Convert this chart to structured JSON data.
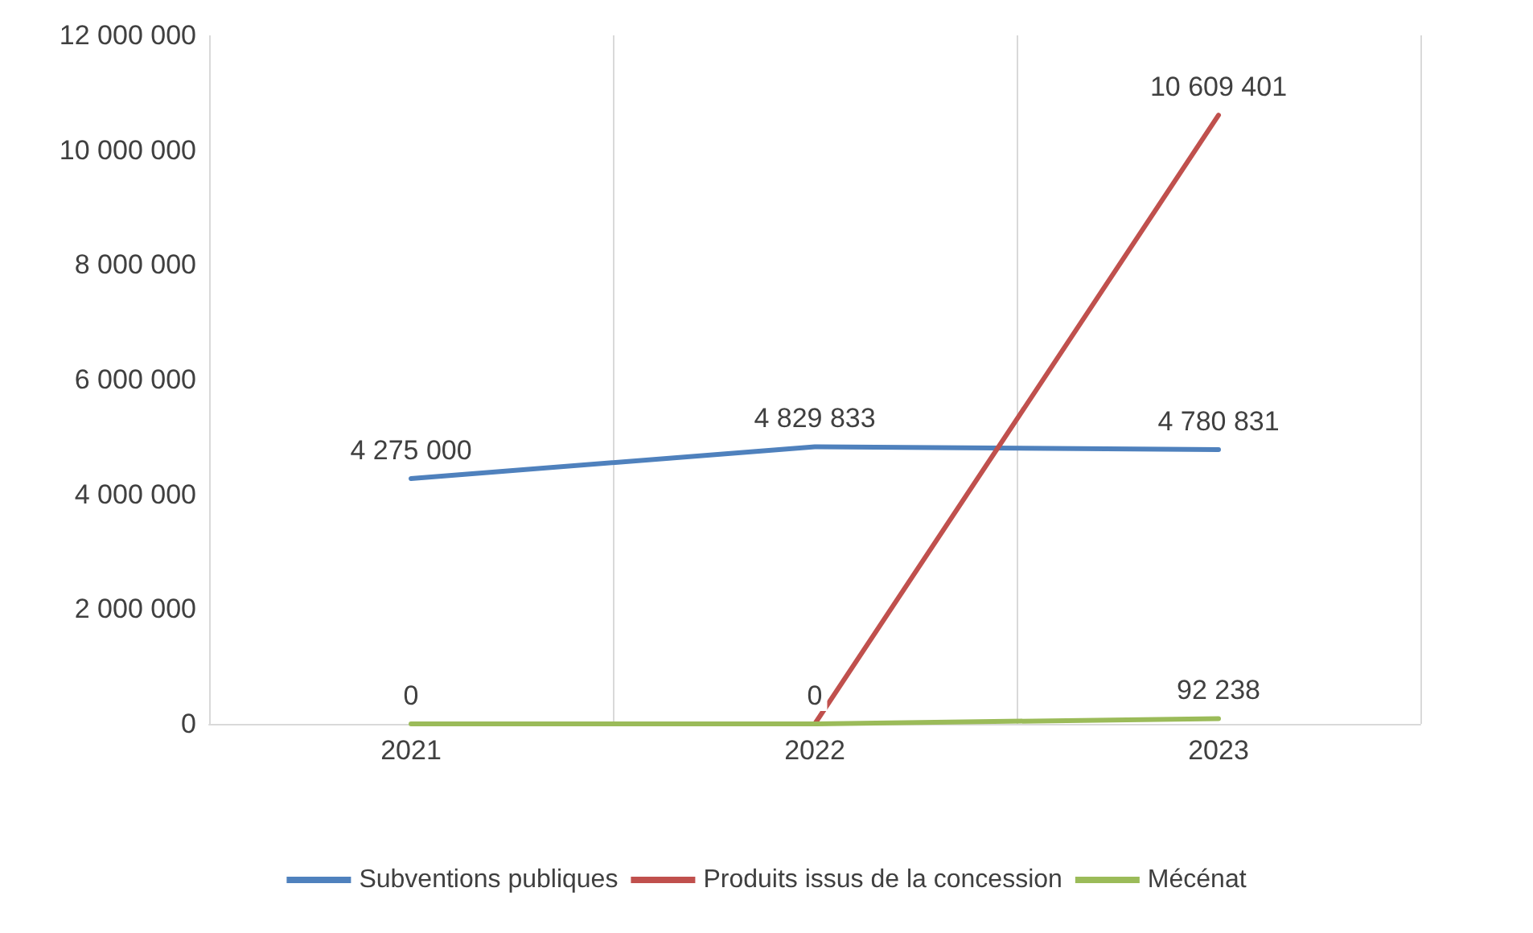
{
  "chart_data": {
    "type": "line",
    "categories": [
      "2021",
      "2022",
      "2023"
    ],
    "series": [
      {
        "name": "Subventions publiques",
        "color": "#4f81bd",
        "values": [
          4275000,
          4829833,
          4780831
        ],
        "value_labels": [
          "4 275 000",
          "4 829 833",
          "4 780 831"
        ]
      },
      {
        "name": "Produits issus de la concession",
        "color": "#c0504d",
        "values": [
          null,
          0,
          10609401
        ],
        "value_labels": [
          null,
          null,
          "10 609 401"
        ]
      },
      {
        "name": "Mécénat",
        "color": "#9bbb59",
        "values": [
          0,
          0,
          92238
        ],
        "value_labels": [
          "0",
          "0",
          "92 238"
        ]
      }
    ],
    "ylim": [
      0,
      12000000
    ],
    "yticks": [
      {
        "value": 0,
        "label": "0"
      },
      {
        "value": 2000000,
        "label": "2 000 000"
      },
      {
        "value": 4000000,
        "label": "4 000 000"
      },
      {
        "value": 6000000,
        "label": "6 000 000"
      },
      {
        "value": 8000000,
        "label": "8 000 000"
      },
      {
        "value": 10000000,
        "label": "10 000 000"
      },
      {
        "value": 12000000,
        "label": "12 000 000"
      }
    ],
    "grid": "x",
    "legend": "bottom",
    "marker": "none",
    "line_style": "solid"
  }
}
